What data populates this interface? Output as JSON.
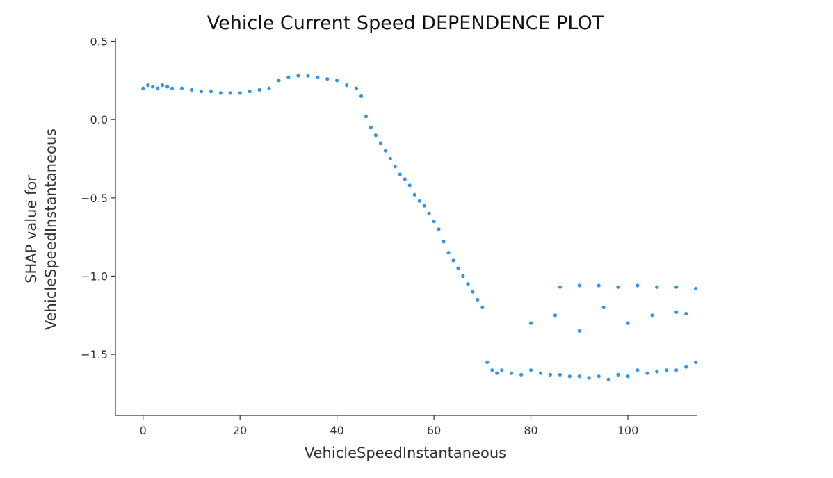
{
  "chart_data": {
    "type": "scatter",
    "title": "Vehicle Current Speed DEPENDENCE PLOT",
    "xlabel": "VehicleSpeedInstantaneous",
    "ylabel_lines": [
      "SHAP value for",
      "VehicleSpeedInstantaneous"
    ],
    "xlim": [
      -5.7,
      114.2
    ],
    "ylim": [
      -1.89,
      0.52
    ],
    "x_ticks": [
      0,
      20,
      40,
      60,
      80,
      100
    ],
    "x_tick_labels": [
      "0",
      "20",
      "40",
      "60",
      "80",
      "100"
    ],
    "y_ticks": [
      0.5,
      0.0,
      -0.5,
      -1.0,
      -1.5
    ],
    "y_tick_labels": [
      "0.5",
      "0.0",
      "−0.5",
      "−1.0",
      "−1.5"
    ],
    "grid": false,
    "point_color": "#1E88E5",
    "series": [
      {
        "x": [
          0,
          1,
          2,
          3,
          4,
          5,
          6,
          8,
          10,
          12,
          14,
          16,
          18,
          20,
          22,
          24,
          26,
          28,
          30,
          32,
          34,
          36,
          38,
          40,
          42,
          44,
          45,
          46,
          47,
          48,
          49,
          50,
          51,
          52,
          53,
          54,
          55,
          56,
          57,
          58,
          59,
          60,
          61,
          62,
          63,
          64,
          65,
          66,
          67,
          68,
          69,
          70,
          71,
          72,
          73,
          74,
          76,
          78,
          80,
          82,
          84,
          86,
          88,
          90,
          92,
          94,
          96,
          98,
          100,
          102,
          104,
          106,
          108,
          110,
          112,
          114,
          86,
          90,
          94,
          98,
          102,
          106,
          110,
          114,
          80,
          85,
          90,
          95,
          100,
          105,
          110,
          112
        ],
        "y": [
          0.2,
          0.22,
          0.21,
          0.2,
          0.22,
          0.21,
          0.2,
          0.2,
          0.19,
          0.18,
          0.18,
          0.17,
          0.17,
          0.17,
          0.18,
          0.19,
          0.2,
          0.25,
          0.27,
          0.28,
          0.28,
          0.27,
          0.26,
          0.25,
          0.22,
          0.2,
          0.15,
          0.02,
          -0.05,
          -0.1,
          -0.15,
          -0.2,
          -0.25,
          -0.3,
          -0.35,
          -0.38,
          -0.42,
          -0.48,
          -0.52,
          -0.55,
          -0.6,
          -0.65,
          -0.7,
          -0.78,
          -0.85,
          -0.9,
          -0.95,
          -1.0,
          -1.05,
          -1.1,
          -1.15,
          -1.2,
          -1.55,
          -1.6,
          -1.62,
          -1.6,
          -1.62,
          -1.63,
          -1.6,
          -1.62,
          -1.63,
          -1.63,
          -1.64,
          -1.64,
          -1.65,
          -1.64,
          -1.66,
          -1.63,
          -1.64,
          -1.6,
          -1.62,
          -1.61,
          -1.6,
          -1.6,
          -1.58,
          -1.55,
          -1.07,
          -1.06,
          -1.06,
          -1.07,
          -1.06,
          -1.07,
          -1.07,
          -1.08,
          -1.3,
          -1.25,
          -1.35,
          -1.2,
          -1.3,
          -1.25,
          -1.23,
          -1.24
        ]
      }
    ]
  }
}
